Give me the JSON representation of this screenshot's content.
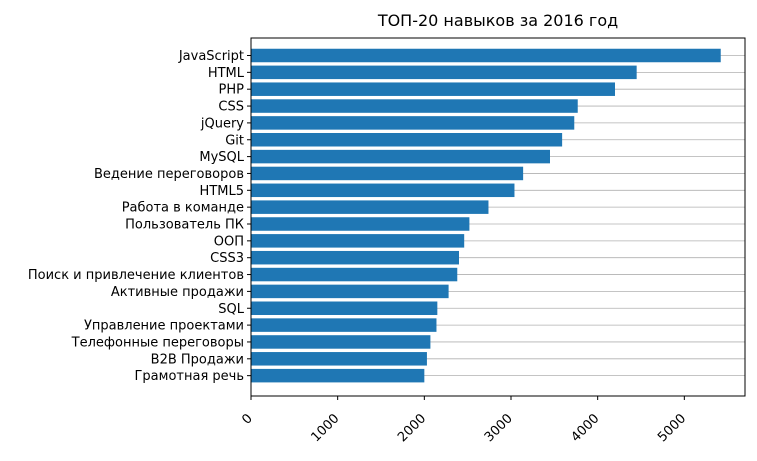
{
  "chart_data": {
    "type": "bar",
    "orientation": "horizontal",
    "title": "ТОП-20 навыков за 2016 год",
    "xlabel": "",
    "ylabel": "",
    "xlim": [
      0,
      5700
    ],
    "xticks": [
      0,
      1000,
      2000,
      3000,
      4000,
      5000
    ],
    "grid": "horizontal lines at each category",
    "color": "#1f77b4",
    "categories": [
      "JavaScript",
      "HTML",
      "PHP",
      "CSS",
      "jQuery",
      "Git",
      "MySQL",
      "Ведение переговоров",
      "HTML5",
      "Работа в команде",
      "Пользователь ПК",
      "ООП",
      "CSS3",
      "Поиск и привлечение клиентов",
      "Активные продажи",
      "SQL",
      "Управление проектами",
      "Телефонные переговоры",
      "B2B Продажи",
      "Грамотная речь"
    ],
    "values": [
      5420,
      4450,
      4200,
      3770,
      3730,
      3590,
      3450,
      3140,
      3040,
      2740,
      2520,
      2460,
      2400,
      2380,
      2280,
      2150,
      2140,
      2070,
      2030,
      2000
    ]
  }
}
